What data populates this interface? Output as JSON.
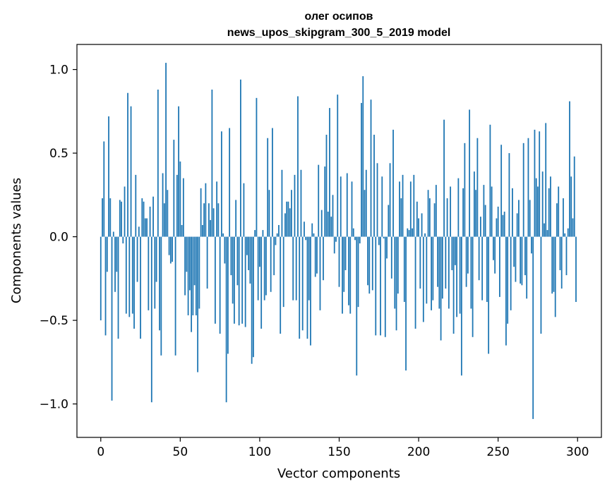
{
  "chart_data": {
    "type": "bar",
    "title": "олег осипов",
    "subtitle": "news_upos_skipgram_300_5_2019 model",
    "xlabel": "Vector components",
    "ylabel": "Components values",
    "xlim": [
      -15,
      315
    ],
    "ylim": [
      -1.2,
      1.15
    ],
    "x_ticks": [
      {
        "value": 0,
        "label": "0"
      },
      {
        "value": 50,
        "label": "50"
      },
      {
        "value": 100,
        "label": "100"
      },
      {
        "value": 150,
        "label": "150"
      },
      {
        "value": 200,
        "label": "200"
      },
      {
        "value": 250,
        "label": "250"
      },
      {
        "value": 300,
        "label": "300"
      }
    ],
    "y_ticks": [
      {
        "value": 1.0,
        "label": "1.0"
      },
      {
        "value": 0.5,
        "label": "0.5"
      },
      {
        "value": 0.0,
        "label": "0.0"
      },
      {
        "value": -0.5,
        "label": "−0.5"
      },
      {
        "value": -1.0,
        "label": "−1.0"
      }
    ],
    "bar_color": "#1f77b4",
    "grid": false,
    "values": [
      -0.5,
      0.23,
      0.57,
      -0.59,
      -0.21,
      0.72,
      0.23,
      -0.98,
      0.03,
      -0.33,
      -0.21,
      -0.61,
      0.22,
      0.21,
      -0.04,
      0.3,
      -0.46,
      0.86,
      -0.48,
      0.78,
      -0.46,
      -0.55,
      0.37,
      -0.27,
      0.06,
      -0.61,
      0.23,
      0.21,
      0.11,
      0.11,
      -0.44,
      0.18,
      -0.99,
      0.24,
      -0.43,
      -0.27,
      0.88,
      -0.56,
      -0.71,
      0.38,
      0.2,
      1.04,
      0.28,
      -0.11,
      -0.16,
      -0.15,
      0.58,
      -0.71,
      0.37,
      0.78,
      0.45,
      0.07,
      0.35,
      -0.35,
      -0.21,
      -0.47,
      -0.32,
      -0.57,
      -0.47,
      -0.29,
      -0.47,
      -0.81,
      -0.43,
      0.29,
      0.07,
      0.2,
      0.32,
      -0.31,
      0.2,
      0.1,
      0.88,
      0.17,
      -0.52,
      0.33,
      0.2,
      -0.58,
      0.63,
      0.02,
      -0.16,
      -0.99,
      -0.7,
      0.65,
      -0.23,
      -0.4,
      -0.52,
      0.22,
      -0.29,
      -0.53,
      0.94,
      -0.52,
      0.32,
      -0.54,
      -0.11,
      -0.2,
      -0.28,
      -0.76,
      -0.72,
      0.04,
      0.83,
      -0.38,
      -0.18,
      -0.55,
      0.04,
      -0.38,
      -0.35,
      0.59,
      0.28,
      -0.33,
      0.65,
      -0.23,
      -0.05,
      0.02,
      0.07,
      -0.58,
      0.4,
      -0.42,
      0.14,
      0.21,
      0.21,
      0.17,
      0.28,
      -0.38,
      0.37,
      -0.38,
      0.84,
      -0.61,
      0.4,
      -0.56,
      0.09,
      -0.02,
      -0.61,
      -0.38,
      -0.65,
      0.08,
      0.02,
      -0.24,
      -0.22,
      0.43,
      -0.44,
      0.16,
      -0.26,
      0.42,
      0.61,
      0.15,
      0.77,
      0.12,
      0.25,
      -0.1,
      -0.03,
      0.85,
      -0.3,
      0.36,
      -0.46,
      -0.33,
      -0.2,
      0.38,
      -0.41,
      -0.46,
      0.33,
      0.05,
      -0.02,
      -0.83,
      -0.42,
      -0.04,
      0.8,
      0.96,
      0.28,
      0.4,
      -0.29,
      -0.34,
      0.82,
      -0.32,
      0.61,
      -0.59,
      0.44,
      -0.05,
      -0.59,
      0.36,
      -0.01,
      -0.6,
      -0.13,
      0.19,
      0.44,
      -0.25,
      0.64,
      -0.43,
      -0.56,
      -0.34,
      0.33,
      0.23,
      0.37,
      -0.39,
      -0.8,
      0.05,
      0.04,
      0.33,
      0.05,
      0.37,
      -0.55,
      0.21,
      0.11,
      -0.31,
      0.14,
      -0.51,
      0.02,
      -0.4,
      0.28,
      0.23,
      -0.44,
      -0.38,
      0.2,
      0.31,
      -0.3,
      -0.43,
      -0.62,
      -0.37,
      0.7,
      -0.31,
      0.23,
      -0.43,
      0.3,
      -0.2,
      -0.58,
      -0.17,
      -0.48,
      0.35,
      -0.46,
      -0.83,
      0.29,
      0.56,
      -0.3,
      -0.22,
      0.76,
      -0.43,
      -0.6,
      0.39,
      0.28,
      0.59,
      -0.26,
      0.12,
      -0.38,
      0.31,
      0.19,
      -0.39,
      -0.7,
      0.67,
      0.3,
      -0.14,
      -0.22,
      0.11,
      0.18,
      -0.36,
      0.55,
      0.13,
      0.15,
      -0.65,
      -0.52,
      0.5,
      -0.44,
      0.29,
      -0.18,
      -0.27,
      0.14,
      0.22,
      -0.28,
      -0.29,
      0.56,
      -0.23,
      -0.37,
      0.59,
      0.22,
      -0.1,
      -1.09,
      0.64,
      0.35,
      0.3,
      0.63,
      -0.58,
      0.39,
      0.08,
      0.68,
      0.04,
      0.29,
      0.36,
      -0.34,
      -0.33,
      -0.48,
      0.2,
      0.3,
      -0.2,
      -0.31,
      0.23,
      0.02,
      -0.23,
      0.05,
      0.81,
      0.36,
      0.11,
      0.48,
      -0.39
    ]
  }
}
